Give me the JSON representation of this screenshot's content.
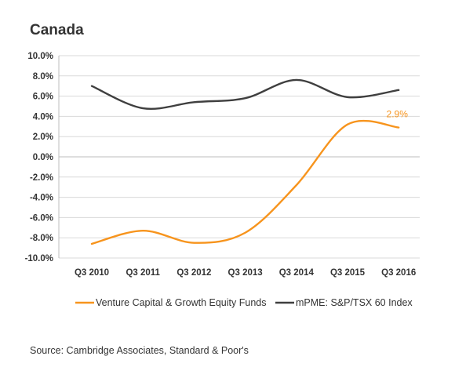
{
  "title": "Canada",
  "source": "Source: Cambridge Associates, Standard & Poor's",
  "chart_data": {
    "type": "line",
    "x": [
      "Q3 2010",
      "Q3 2011",
      "Q3 2012",
      "Q3 2013",
      "Q3 2014",
      "Q3 2015",
      "Q3 2016"
    ],
    "series": [
      {
        "name": "Venture Capital & Growth Equity Funds",
        "color": "#F7941D",
        "values": [
          -8.6,
          -7.3,
          -8.5,
          -7.5,
          -2.8,
          3.2,
          2.9
        ]
      },
      {
        "name": "mPME: S&P/TSX 60 Index",
        "color": "#3f3f3f",
        "values": [
          7.0,
          4.8,
          5.4,
          5.8,
          7.6,
          5.9,
          6.6
        ]
      }
    ],
    "y_ticks": [
      "10.0%",
      "8.0%",
      "6.0%",
      "4.0%",
      "2.0%",
      "0.0%",
      "-2.0%",
      "-4.0%",
      "-6.0%",
      "-8.0%",
      "-10.0%"
    ],
    "ylim": [
      -10,
      10
    ],
    "grid": true,
    "legend_position": "bottom",
    "annotation": {
      "text": "2.9%",
      "series": 0,
      "index": 6
    }
  }
}
